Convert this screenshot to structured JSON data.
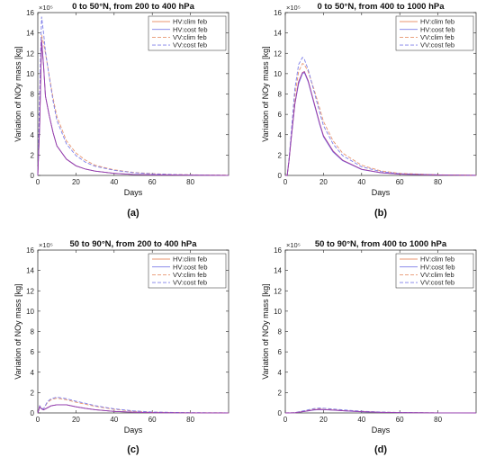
{
  "figure": {
    "series_names": [
      "HV:clim feb",
      "HV:cost feb",
      "VV:clim feb",
      "VV:cost feb"
    ],
    "series_colors": [
      "#e8956f",
      "#7d7de8",
      "#e8956f",
      "#7d7de8"
    ],
    "series_dash": [
      false,
      false,
      true,
      true
    ],
    "overlap_color": "#9a2ea3"
  },
  "chart_data": [
    {
      "type": "line",
      "panel_label": "(a)",
      "title": "0 to 50°N, from 200 to 400 hPa",
      "xlabel": "Days",
      "ylabel": "Variation of NOy mass [kg]",
      "y_exponent": "×10⁵",
      "xlim": [
        0,
        100
      ],
      "ylim": [
        0,
        16
      ],
      "xticks": [
        0,
        20,
        40,
        60,
        80
      ],
      "yticks": [
        0,
        2,
        4,
        6,
        8,
        10,
        12,
        14,
        16
      ],
      "legend": "top-right",
      "grid": false,
      "series": [
        {
          "name": "HV:clim feb",
          "x": [
            0,
            1,
            2,
            3,
            4,
            6,
            8,
            10,
            15,
            20,
            25,
            30,
            40,
            50,
            60,
            70,
            80,
            90,
            100
          ],
          "y": [
            0,
            5,
            13.3,
            10.8,
            7.8,
            5.9,
            4.2,
            2.9,
            1.6,
            0.95,
            0.62,
            0.42,
            0.2,
            0.1,
            0.06,
            0.04,
            0.03,
            0.02,
            0.01
          ]
        },
        {
          "name": "HV:cost feb",
          "x": [
            0,
            1,
            2,
            3,
            4,
            6,
            8,
            10,
            15,
            20,
            25,
            30,
            40,
            50,
            60,
            70,
            80,
            90,
            100
          ],
          "y": [
            0,
            5,
            13.3,
            10.8,
            7.8,
            5.9,
            4.2,
            2.9,
            1.6,
            0.95,
            0.62,
            0.42,
            0.2,
            0.1,
            0.06,
            0.04,
            0.03,
            0.02,
            0.01
          ]
        },
        {
          "name": "VV:clim feb",
          "x": [
            0,
            1,
            2,
            3,
            4,
            6,
            8,
            10,
            15,
            20,
            25,
            30,
            40,
            50,
            60,
            70,
            80,
            90,
            100
          ],
          "y": [
            0,
            6.5,
            13.8,
            13,
            12,
            9.8,
            7.6,
            5.8,
            3.4,
            2.2,
            1.5,
            1.0,
            0.55,
            0.3,
            0.18,
            0.1,
            0.06,
            0.04,
            0.03
          ]
        },
        {
          "name": "VV:cost feb",
          "x": [
            0,
            1,
            2,
            3,
            4,
            6,
            8,
            10,
            15,
            20,
            25,
            30,
            40,
            50,
            60,
            70,
            80,
            90,
            100
          ],
          "y": [
            0,
            8,
            15.6,
            14,
            12.2,
            9.7,
            7.3,
            5.4,
            3.1,
            1.95,
            1.3,
            0.9,
            0.5,
            0.27,
            0.16,
            0.09,
            0.05,
            0.03,
            0.02
          ]
        }
      ]
    },
    {
      "type": "line",
      "panel_label": "(b)",
      "title": "0 to 50°N, from 400 to 1000 hPa",
      "xlabel": "Days",
      "ylabel": "Variation of NOy mass [kg]",
      "y_exponent": "×10⁵",
      "xlim": [
        0,
        100
      ],
      "ylim": [
        0,
        16
      ],
      "xticks": [
        0,
        20,
        40,
        60,
        80
      ],
      "yticks": [
        0,
        2,
        4,
        6,
        8,
        10,
        12,
        14,
        16
      ],
      "legend": "top-right",
      "grid": false,
      "series": [
        {
          "name": "HV:clim feb",
          "x": [
            0,
            1,
            2,
            3,
            5,
            7,
            9,
            10,
            12,
            15,
            18,
            20,
            25,
            30,
            40,
            50,
            60,
            80,
            100
          ],
          "y": [
            0,
            0,
            1.5,
            3.5,
            7,
            9.2,
            10.1,
            10.2,
            9.3,
            7.2,
            5.1,
            3.9,
            2.4,
            1.5,
            0.6,
            0.27,
            0.12,
            0.04,
            0.01
          ]
        },
        {
          "name": "HV:cost feb",
          "x": [
            0,
            1,
            2,
            3,
            5,
            7,
            9,
            10,
            12,
            15,
            18,
            20,
            25,
            30,
            40,
            50,
            60,
            80,
            100
          ],
          "y": [
            0,
            0,
            1.5,
            3.5,
            7,
            9.0,
            10.0,
            10.1,
            9.2,
            7.1,
            5.0,
            3.8,
            2.3,
            1.45,
            0.58,
            0.26,
            0.12,
            0.04,
            0.01
          ]
        },
        {
          "name": "VV:clim feb",
          "x": [
            0,
            1,
            2,
            3,
            5,
            7,
            9,
            10,
            12,
            15,
            18,
            20,
            25,
            30,
            40,
            50,
            60,
            80,
            100
          ],
          "y": [
            0,
            0,
            1.6,
            3.8,
            7.8,
            10.2,
            11.0,
            10.9,
            10.2,
            8.5,
            6.6,
            5.3,
            3.4,
            2.2,
            1.0,
            0.45,
            0.2,
            0.06,
            0.02
          ]
        },
        {
          "name": "VV:cost feb",
          "x": [
            0,
            1,
            2,
            3,
            5,
            7,
            9,
            10,
            12,
            15,
            18,
            20,
            25,
            30,
            40,
            50,
            60,
            80,
            100
          ],
          "y": [
            0,
            0,
            1.7,
            4,
            8.5,
            10.9,
            11.6,
            11.4,
            10.4,
            8.3,
            6.2,
            4.9,
            3.1,
            1.95,
            0.85,
            0.38,
            0.17,
            0.05,
            0.02
          ]
        }
      ]
    },
    {
      "type": "line",
      "panel_label": "(c)",
      "title": "50 to 90°N, from 200 to 400 hPa",
      "xlabel": "Days",
      "ylabel": "Variation of NOy mass [kg]",
      "y_exponent": "×10⁵",
      "xlim": [
        0,
        100
      ],
      "ylim": [
        0,
        16
      ],
      "xticks": [
        0,
        20,
        40,
        60,
        80
      ],
      "yticks": [
        0,
        2,
        4,
        6,
        8,
        10,
        12,
        14,
        16
      ],
      "legend": "top-right",
      "grid": false,
      "series": [
        {
          "name": "HV:clim feb",
          "x": [
            0,
            1,
            2,
            3,
            5,
            7,
            10,
            15,
            20,
            25,
            30,
            40,
            50,
            60,
            80,
            100
          ],
          "y": [
            0,
            0.6,
            0.4,
            0.3,
            0.5,
            0.7,
            0.8,
            0.8,
            0.6,
            0.45,
            0.32,
            0.15,
            0.07,
            0.03,
            0.01,
            0
          ]
        },
        {
          "name": "HV:cost feb",
          "x": [
            0,
            1,
            2,
            3,
            5,
            7,
            10,
            15,
            20,
            25,
            30,
            40,
            50,
            60,
            80,
            100
          ],
          "y": [
            0,
            0.6,
            0.4,
            0.3,
            0.5,
            0.7,
            0.8,
            0.8,
            0.6,
            0.45,
            0.32,
            0.15,
            0.07,
            0.03,
            0.01,
            0
          ]
        },
        {
          "name": "VV:clim feb",
          "x": [
            0,
            1,
            2,
            3,
            5,
            7,
            10,
            15,
            20,
            25,
            30,
            40,
            50,
            60,
            80,
            100
          ],
          "y": [
            0,
            0.7,
            0.45,
            0.4,
            1.0,
            1.3,
            1.45,
            1.3,
            1.05,
            0.85,
            0.65,
            0.35,
            0.17,
            0.08,
            0.02,
            0.01
          ]
        },
        {
          "name": "VV:cost feb",
          "x": [
            0,
            1,
            2,
            3,
            5,
            7,
            10,
            15,
            20,
            25,
            30,
            40,
            50,
            60,
            80,
            100
          ],
          "y": [
            0,
            0.7,
            0.45,
            0.4,
            1.1,
            1.4,
            1.55,
            1.4,
            1.15,
            0.95,
            0.72,
            0.4,
            0.2,
            0.09,
            0.03,
            0.01
          ]
        }
      ]
    },
    {
      "type": "line",
      "panel_label": "(d)",
      "title": "50 to 90°N, from 400 to 1000 hPa",
      "xlabel": "Days",
      "ylabel": "Variation of NOy mass [kg]",
      "y_exponent": "×10⁵",
      "xlim": [
        0,
        100
      ],
      "ylim": [
        0,
        16
      ],
      "xticks": [
        0,
        20,
        40,
        60,
        80
      ],
      "yticks": [
        0,
        2,
        4,
        6,
        8,
        10,
        12,
        14,
        16
      ],
      "legend": "top-right",
      "grid": false,
      "series": [
        {
          "name": "HV:clim feb",
          "x": [
            0,
            5,
            10,
            15,
            18,
            20,
            25,
            30,
            40,
            50,
            60,
            80,
            100
          ],
          "y": [
            0,
            0.02,
            0.15,
            0.3,
            0.35,
            0.33,
            0.28,
            0.22,
            0.12,
            0.06,
            0.03,
            0.01,
            0
          ]
        },
        {
          "name": "HV:cost feb",
          "x": [
            0,
            5,
            10,
            15,
            18,
            20,
            25,
            30,
            40,
            50,
            60,
            80,
            100
          ],
          "y": [
            0,
            0.02,
            0.14,
            0.28,
            0.33,
            0.32,
            0.27,
            0.21,
            0.11,
            0.05,
            0.03,
            0.01,
            0
          ]
        },
        {
          "name": "VV:clim feb",
          "x": [
            0,
            5,
            10,
            15,
            18,
            20,
            25,
            30,
            40,
            50,
            60,
            80,
            100
          ],
          "y": [
            0,
            0.03,
            0.2,
            0.4,
            0.45,
            0.43,
            0.36,
            0.28,
            0.16,
            0.08,
            0.04,
            0.01,
            0
          ]
        },
        {
          "name": "VV:cost feb",
          "x": [
            0,
            5,
            10,
            15,
            18,
            20,
            25,
            30,
            40,
            50,
            60,
            80,
            100
          ],
          "y": [
            0,
            0.03,
            0.22,
            0.42,
            0.48,
            0.46,
            0.38,
            0.3,
            0.17,
            0.09,
            0.04,
            0.01,
            0
          ]
        }
      ]
    }
  ]
}
